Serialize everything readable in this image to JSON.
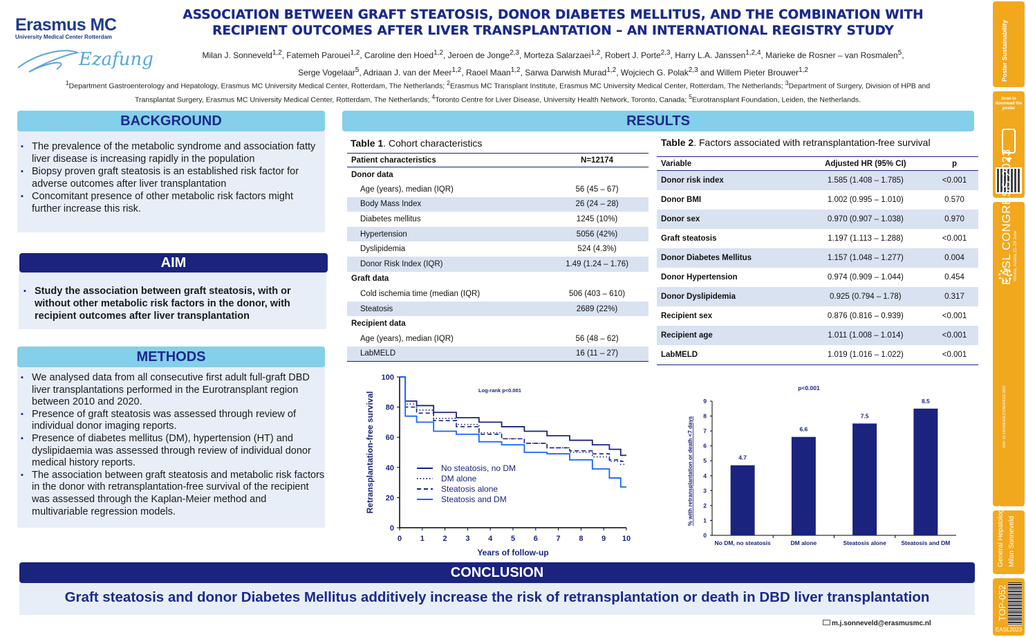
{
  "header": {
    "logo_brand": "Erasmus MC",
    "logo_sub": "University Medical Center Rotterdam",
    "logo_script": "Ezafung",
    "title_line1": "ASSOCIATION BETWEEN GRAFT STEATOSIS, DONOR DIABETES MELLITUS, AND THE COMBINATION WITH",
    "title_line2": "RECIPIENT OUTCOMES AFTER LIVER TRANSPLANTATION – AN INTERNATIONAL REGISTRY STUDY",
    "authors_line1": "Milan J. Sonneveld1,2, Fatemeh Parouei1,2, Caroline den Hoed1,2, Jeroen de Jonge2,3, Morteza Salarzaei1,2,  Robert J. Porte2,3, Harry L.A. Janssen1,2,4, Marieke de Rosner – van Rosmalen5,",
    "authors_line2": "Serge Vogelaar5, Adriaan J. van der Meer1,2, Raoel Maan1,2, Sarwa Darwish Murad1,2, Wojciech G. Polak2,3 and Willem Pieter Brouwer1,2",
    "affiliations_line1": "1Department Gastroenterology and Hepatology, Erasmus MC University Medical Center, Rotterdam, The Netherlands; 2Erasmus MC Transplant Institute, Erasmus MC University Medical Center, Rotterdam, The Netherlands; 3Department of Surgery, Division of HPB and",
    "affiliations_line2": "Transplantat Surgery, Erasmus MC University Medical Center, Rotterdam, The Netherlands; 4Toronto Centre for Liver Disease, University Health Network, Toronto, Canada; 5Eurotransplant Foundation, Leiden, the Netherlands."
  },
  "background": {
    "heading": "BACKGROUND",
    "bullets": [
      "The prevalence of the metabolic syndrome and association fatty liver disease is increasing rapidly in the population",
      "Biopsy proven graft steatosis is an established risk factor for adverse outcomes after liver transplantation",
      "Concomitant presence of other metabolic risk factors might further increase this risk."
    ]
  },
  "aim": {
    "heading": "AIM",
    "bullet": "Study the association between graft steatosis, with or without other metabolic risk factors in the donor, with recipient outcomes after liver transplantation"
  },
  "methods": {
    "heading": "METHODS",
    "bullets": [
      "We analysed data from all consecutive first adult full-graft DBD liver transplantations performed in the Eurotransplant region between 2010 and 2020.",
      "Presence of graft steatosis was assessed through review of individual donor imaging reports.",
      "Presence of diabetes mellitus (DM), hypertension (HT) and dyslipidaemia was assessed through review of individual donor medical history reports.",
      "The association between graft steatosis and metabolic risk factors in the donor with retransplantation-free survival of the recipient was assessed through the Kaplan-Meier method and multivariable regression models."
    ]
  },
  "results": {
    "heading": "RESULTS",
    "table1": {
      "caption_bold": "Table 1",
      "caption_rest": ". Cohort characteristics",
      "col1": "Patient characteristics",
      "col2": "N=12174",
      "rows": [
        {
          "label": "Donor data",
          "value": "",
          "group": true
        },
        {
          "label": "Age (years), median (IQR)",
          "value": "56 (45 – 67)"
        },
        {
          "label": "Body Mass Index",
          "value": "26 (24 – 28)"
        },
        {
          "label": "Diabetes mellitus",
          "value": "1245 (10%)"
        },
        {
          "label": "Hypertension",
          "value": "5056 (42%)"
        },
        {
          "label": "Dyslipidemia",
          "value": "524 (4.3%)"
        },
        {
          "label": "Donor Risk Index (IQR)",
          "value": "1.49 (1.24 – 1.76)"
        },
        {
          "label": "Graft data",
          "value": "",
          "group": true
        },
        {
          "label": "Cold ischemia time (median (IQR)",
          "value": "506 (403 – 610)"
        },
        {
          "label": "Steatosis",
          "value": "2689 (22%)"
        },
        {
          "label": "Recipient data",
          "value": "",
          "group": true
        },
        {
          "label": "Age (years), median (IQR)",
          "value": "56 (48 – 62)"
        },
        {
          "label": "LabMELD",
          "value": "16 (11 – 27)"
        }
      ]
    },
    "table2": {
      "caption_bold": "Table 2",
      "caption_rest": ". Factors associated with retransplantation-free survival",
      "col1": "Variable",
      "col2": "Adjusted HR (95% CI)",
      "col3": "p",
      "rows": [
        {
          "label": "Donor risk index",
          "hr": "1.585 (1.408 – 1.785)",
          "p": "<0.001"
        },
        {
          "label": "Donor BMI",
          "hr": "1.002 (0.995 – 1.010)",
          "p": "0.570"
        },
        {
          "label": "Donor sex",
          "hr": "0.970 (0.907 – 1.038)",
          "p": "0.970"
        },
        {
          "label": "Graft steatosis",
          "hr": "1.197 (1.113 – 1.288)",
          "p": "<0.001"
        },
        {
          "label": "Donor Diabetes Mellitus",
          "hr": "1.157 (1.048 – 1.277)",
          "p": "0.004"
        },
        {
          "label": "Donor Hypertension",
          "hr": "0.974 (0.909 – 1.044)",
          "p": "0.454"
        },
        {
          "label": "Donor Dyslipidemia",
          "hr": "0.925 (0.794 – 1.78)",
          "p": "0.317"
        },
        {
          "label": "Recipient sex",
          "hr": "0.876 (0.816 – 0.939)",
          "p": "<0.001"
        },
        {
          "label": "Recipient age",
          "hr": "1.011 (1.008 – 1.014)",
          "p": "<0.001"
        },
        {
          "label": "LabMELD",
          "hr": "1.019 (1.016 – 1.022)",
          "p": "<0.001"
        }
      ]
    }
  },
  "chart_data": [
    {
      "type": "line",
      "xlabel": "Years of follow-up",
      "ylabel": "Retransplantation-free survival",
      "annotation": "Log-rank p<0.001",
      "xlim": [
        0,
        10
      ],
      "ylim": [
        0,
        100
      ],
      "xticks": [
        0,
        1,
        2,
        3,
        4,
        5,
        6,
        7,
        8,
        9,
        10
      ],
      "yticks": [
        0,
        20,
        40,
        60,
        80,
        100
      ],
      "x": [
        0,
        0.5,
        1,
        2,
        3,
        4,
        5,
        6,
        7,
        8,
        9,
        9.5,
        10
      ],
      "series": [
        {
          "name": "No steatosis, no DM",
          "style": "solid",
          "color": "#1a237e",
          "values": [
            100,
            84,
            81,
            76.5,
            73,
            70,
            67,
            64,
            61,
            58,
            55,
            52,
            48
          ]
        },
        {
          "name": "DM alone",
          "style": "dotted",
          "color": "#1a237e",
          "values": [
            100,
            82,
            78,
            72.5,
            68.5,
            63,
            59,
            56,
            53,
            50,
            47,
            44,
            42
          ]
        },
        {
          "name": "Steatosis alone",
          "style": "dashed",
          "color": "#1a237e",
          "values": [
            100,
            80,
            76,
            71,
            67,
            62,
            59,
            56,
            53,
            51,
            49,
            45,
            44
          ]
        },
        {
          "name": "Steatosis and DM",
          "style": "solid",
          "color": "#1565ff",
          "values": [
            100,
            74,
            70,
            64,
            62,
            57,
            55,
            50,
            49,
            45,
            39,
            33,
            27
          ]
        }
      ],
      "legend_position": "bottom-left"
    },
    {
      "type": "bar",
      "ylabel": "% with retransplantation or death <7 days",
      "annotation": "p<0.001",
      "categories": [
        "No DM, no steatosis",
        "DM alone",
        "Steatosis alone",
        "Steatosis and DM"
      ],
      "values": [
        4.7,
        6.6,
        7.5,
        8.5
      ],
      "value_labels": [
        "4.7",
        "6.6",
        "7.5",
        "8.5"
      ],
      "ylim": [
        0,
        9
      ],
      "yticks": [
        0,
        1,
        2,
        3,
        4,
        5,
        6,
        7,
        8,
        9
      ],
      "color": "#1a237e"
    }
  ],
  "conclusion": {
    "heading": "CONCLUSION",
    "text": "Graft steatosis and donor Diabetes Mellitus additively increase the risk of retransplantation or death in DBD liver transplantation"
  },
  "footer": {
    "email": "m.j.sonneveld@erasmusmc.nl"
  },
  "sidebar": {
    "poster_sustainability": "Poster Sustainability",
    "scan_text": "Scan to download the poster",
    "congress": "EASL CONGRESS 2023",
    "congress_sub": "Vienna, Austria 21–24 June",
    "doi": "DOI: 10.13140/EASL/CONGRESS.2023",
    "category": "General Hepatology",
    "author": "Milan Sonneveld",
    "code": "TOP-052",
    "easl": "EASL2023",
    "colors": {
      "accent": "#f2a81d",
      "navy": "#1a237e",
      "light": "#84cfe9"
    }
  }
}
